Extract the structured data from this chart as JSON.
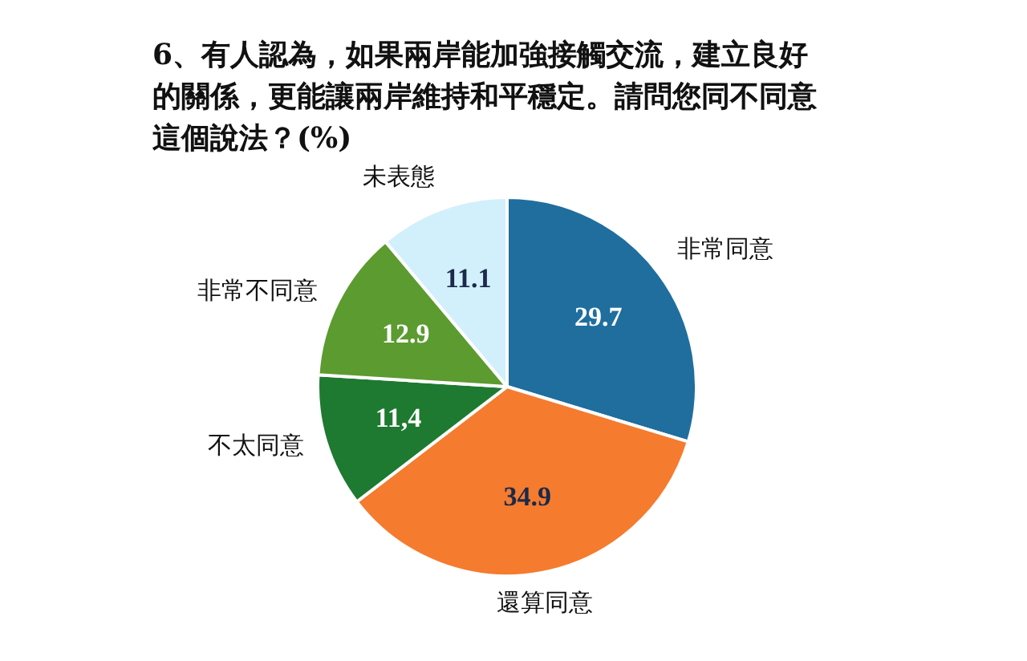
{
  "chart_data": {
    "type": "pie",
    "title": "6、有人認為，如果兩岸能加強接觸交流，建立良好的關係，更能讓兩岸維持和平穩定。請問您同不同意這個說法？(%)",
    "categories": [
      "非常同意",
      "還算同意",
      "不太同意",
      "非常不同意",
      "未表態"
    ],
    "values": [
      29.7,
      34.9,
      11.4,
      12.9,
      11.1
    ],
    "colors": [
      "#1f6e9e",
      "#f57b2f",
      "#1e7a30",
      "#5c9b30",
      "#d2effc"
    ],
    "value_labels": [
      "29.7",
      "34.9",
      "11,4",
      "12.9",
      "11.1"
    ],
    "legend": false
  }
}
